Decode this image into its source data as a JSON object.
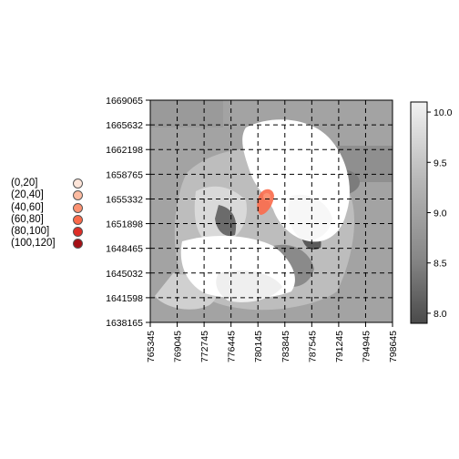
{
  "legend": {
    "classes": [
      {
        "label": "(0,20]",
        "color": "#fee5d9"
      },
      {
        "label": "(20,40]",
        "color": "#fcbba1"
      },
      {
        "label": "(40,60]",
        "color": "#fc9272"
      },
      {
        "label": "(60,80]",
        "color": "#fb6a4a"
      },
      {
        "label": "(80,100]",
        "color": "#de2d26"
      },
      {
        "label": "(100,120]",
        "color": "#a50f15"
      }
    ]
  },
  "chart_data": {
    "type": "heatmap",
    "x_ticks": [
      765345,
      769045,
      772745,
      776445,
      780145,
      783845,
      787545,
      791245,
      794945,
      798645
    ],
    "y_ticks": [
      1669065,
      1665632,
      1662198,
      1658765,
      1655332,
      1651898,
      1648465,
      1645032,
      1641598,
      1638165
    ],
    "xlim": [
      765345,
      798645
    ],
    "ylim": [
      1638165,
      1669065
    ],
    "grid": true,
    "grid_style": "dashed",
    "colorbar": {
      "ticks": [
        "10.0",
        "9.5",
        "9.0",
        "8.5",
        "8.0"
      ],
      "range": [
        7.9,
        10.1
      ],
      "low_color": "#4a4a4a",
      "high_color": "#f2f2f2"
    }
  }
}
